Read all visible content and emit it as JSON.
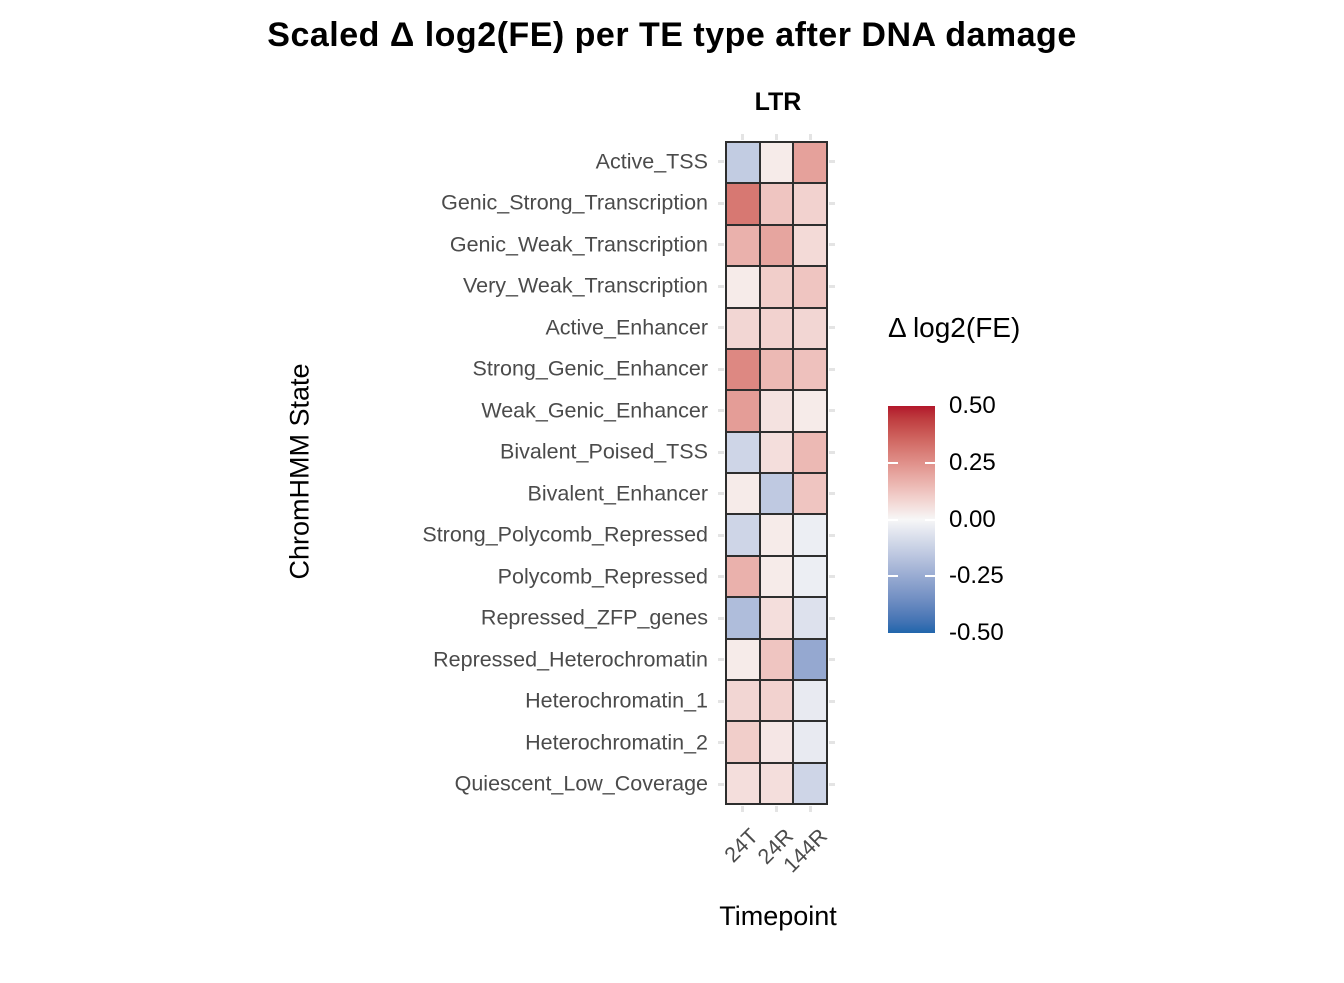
{
  "title": "Scaled Δ log2(FE) per TE type after DNA damage",
  "facet_label": "LTR",
  "x_axis": {
    "title": "Timepoint",
    "labels": [
      "24T",
      "24R",
      "144R"
    ]
  },
  "y_axis": {
    "title": "ChromHMM State"
  },
  "legend": {
    "title": "Δ log2(FE)",
    "tick_labels": [
      "0.50",
      "0.25",
      "0.00",
      "-0.25",
      "-0.50"
    ]
  },
  "colors": {
    "high": "#B2182B",
    "mid": "#F7F7F7",
    "low": "#2166AC",
    "grid_border": "#2E2E2E"
  },
  "chart_data": {
    "type": "heatmap",
    "title": "Scaled Δ log2(FE) per TE type after DNA damage",
    "facet": "LTR",
    "xlabel": "Timepoint",
    "ylabel": "ChromHMM State",
    "legend_title": "Δ log2(FE)",
    "x": [
      "24T",
      "24R",
      "144R"
    ],
    "color_scale": {
      "type": "diverging",
      "low": "#2166AC",
      "mid": "#F7F7F7",
      "high": "#B2182B",
      "domain": [
        -0.5,
        0.5
      ],
      "legend_ticks": [
        0.5,
        0.25,
        0.0,
        -0.25,
        -0.5
      ]
    },
    "rows": [
      {
        "state": "Active_TSS",
        "values": [
          -0.14,
          0.03,
          0.21
        ]
      },
      {
        "state": "Genic_Strong_Transcription",
        "values": [
          0.31,
          0.12,
          0.09
        ]
      },
      {
        "state": "Genic_Weak_Transcription",
        "values": [
          0.17,
          0.2,
          0.07
        ]
      },
      {
        "state": "Very_Weak_Transcription",
        "values": [
          0.03,
          0.1,
          0.12
        ]
      },
      {
        "state": "Active_Enhancer",
        "values": [
          0.08,
          0.09,
          0.08
        ]
      },
      {
        "state": "Strong_Genic_Enhancer",
        "values": [
          0.27,
          0.15,
          0.13
        ]
      },
      {
        "state": "Weak_Genic_Enhancer",
        "values": [
          0.22,
          0.05,
          0.03
        ]
      },
      {
        "state": "Bivalent_Poised_TSS",
        "values": [
          -0.11,
          0.06,
          0.15
        ]
      },
      {
        "state": "Bivalent_Enhancer",
        "values": [
          0.03,
          -0.15,
          0.12
        ]
      },
      {
        "state": "Strong_Polycomb_Repressed",
        "values": [
          -0.11,
          0.03,
          -0.03
        ]
      },
      {
        "state": "Polycomb_Repressed",
        "values": [
          0.17,
          0.03,
          -0.03
        ]
      },
      {
        "state": "Repressed_ZFP_genes",
        "values": [
          -0.19,
          0.06,
          -0.07
        ]
      },
      {
        "state": "Repressed_Heterochromatin",
        "values": [
          0.03,
          0.12,
          -0.26
        ]
      },
      {
        "state": "Heterochromatin_1",
        "values": [
          0.08,
          0.09,
          -0.04
        ]
      },
      {
        "state": "Heterochromatin_2",
        "values": [
          0.1,
          0.04,
          -0.04
        ]
      },
      {
        "state": "Quiescent_Low_Coverage",
        "values": [
          0.06,
          0.06,
          -0.11
        ]
      }
    ]
  }
}
